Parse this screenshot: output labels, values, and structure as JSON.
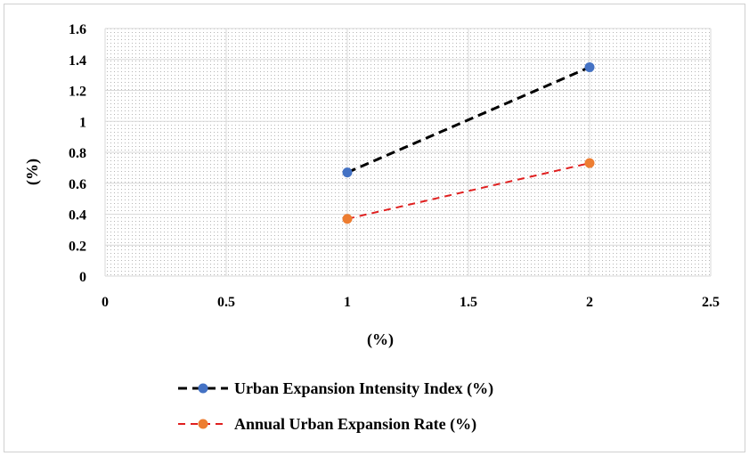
{
  "chart_data": {
    "type": "scatter",
    "xlabel": "(%)",
    "ylabel": "(%)",
    "xlim": [
      0,
      2.5
    ],
    "ylim": [
      0,
      1.6
    ],
    "x_ticks": [
      "0",
      "0.5",
      "1",
      "1.5",
      "2",
      "2.5"
    ],
    "y_ticks": [
      "0",
      "0.2",
      "0.4",
      "0.6",
      "0.8",
      "1",
      "1.2",
      "1.4",
      "1.6"
    ],
    "grid": true,
    "legend_position": "bottom",
    "series": [
      {
        "name": "Urban Expansion Intensity Index (%)",
        "x": [
          1,
          2
        ],
        "y": [
          0.67,
          1.35
        ],
        "marker_color": "#4472C4",
        "line_color": "#000000",
        "line_style": "dashed"
      },
      {
        "name": "Annual Urban Expansion Rate (%)",
        "x": [
          1,
          2
        ],
        "y": [
          0.37,
          0.73
        ],
        "marker_color": "#ED7D31",
        "line_color": "#E02020",
        "line_style": "dashed"
      }
    ]
  }
}
